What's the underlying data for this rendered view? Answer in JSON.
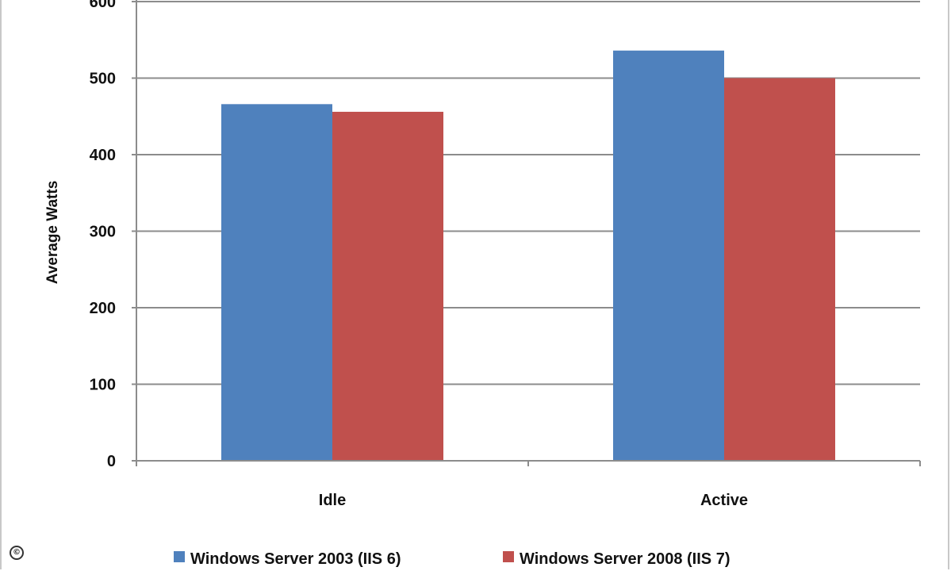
{
  "chart_data": {
    "type": "bar",
    "title": "",
    "xlabel": "",
    "ylabel": "Average Watts",
    "ylim": [
      0,
      600
    ],
    "yticks": [
      0,
      100,
      200,
      300,
      400,
      500,
      600
    ],
    "categories": [
      "Idle",
      "Active"
    ],
    "series": [
      {
        "name": "Windows Server 2003 (IIS 6)",
        "color": "#4f81bd",
        "values": [
          466,
          536
        ]
      },
      {
        "name": "Windows Server 2008 (IIS 7)",
        "color": "#c0504d",
        "values": [
          456,
          500
        ]
      }
    ],
    "grid": true,
    "legend_position": "bottom"
  },
  "corner_mark": "©"
}
